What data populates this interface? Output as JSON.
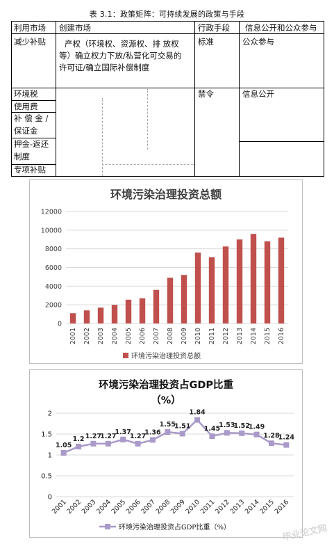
{
  "table": {
    "caption": "表 3.1：政策矩阵：可持续发展的政策与手段",
    "headers": [
      "利用市场",
      "创建市场",
      "行政手段",
      "信息公开和公众参与"
    ],
    "rows": [
      {
        "col1": "减少补贴",
        "col2_lines": [
          "产权（环境权、资源权、排 放权",
          "等）确立权力下放/私营化可交易的",
          "许可证/确立国际补偿制度"
        ],
        "col3": "标准",
        "col4": "公众参与"
      },
      {
        "col1": "环境税",
        "col3": "禁令",
        "col4": "信息公开"
      },
      {
        "col1": "使用费"
      },
      {
        "col1_lines": [
          "补 偿 金 /",
          "保证金"
        ]
      },
      {
        "col1_lines": [
          "押金-返还",
          "制度"
        ]
      },
      {
        "col1": "专项补贴"
      }
    ]
  },
  "charts": [
    {
      "type": "bar",
      "title": "环境污染治理投资总额",
      "categories": [
        "2001",
        "2002",
        "2003",
        "2004",
        "2005",
        "2006",
        "2007",
        "2008",
        "2009",
        "2010",
        "2011",
        "2012",
        "2013",
        "2014",
        "2015",
        "2016"
      ],
      "series": [
        {
          "name": "环境污染治理投资总额",
          "values": [
            1100,
            1400,
            1700,
            2000,
            2550,
            2700,
            3600,
            4900,
            5200,
            7600,
            7100,
            8250,
            9000,
            9600,
            8800,
            9200
          ]
        }
      ],
      "yticks": [
        "0",
        "2000",
        "4000",
        "6000",
        "8000",
        "10000",
        "12000"
      ],
      "ylim": [
        0,
        12000
      ],
      "legend_position": "bottom",
      "bar_color": "#c0504d"
    },
    {
      "type": "line",
      "title_lines": [
        "环境污染治理投资占GDP比重",
        "（%）"
      ],
      "categories": [
        "2001",
        "2002",
        "2003",
        "2004",
        "2005",
        "2006",
        "2007",
        "2008",
        "2009",
        "2010",
        "2011",
        "2012",
        "2013",
        "2014",
        "2015",
        "2016"
      ],
      "series": [
        {
          "name": "环境污染治理投资占GDP比重（%）",
          "values": [
            1.05,
            1.2,
            1.27,
            1.27,
            1.37,
            1.27,
            1.36,
            1.55,
            1.51,
            1.84,
            1.45,
            1.53,
            1.52,
            1.49,
            1.28,
            1.24
          ]
        }
      ],
      "data_labels": [
        "1.05",
        "1.2",
        "1.27",
        "1.27",
        "1.37",
        "1.27",
        "1.36",
        "1.55",
        "1.51",
        "1.84",
        "1.45",
        "1.53",
        "1.52",
        "1.49",
        "1.28",
        "1.24"
      ],
      "yticks": [
        "0",
        "0.5",
        "1",
        "1.5",
        "2"
      ],
      "ylim": [
        0,
        2
      ],
      "legend_position": "bottom",
      "line_color": "#a99ac9"
    }
  ],
  "watermark": "毕业论文网"
}
